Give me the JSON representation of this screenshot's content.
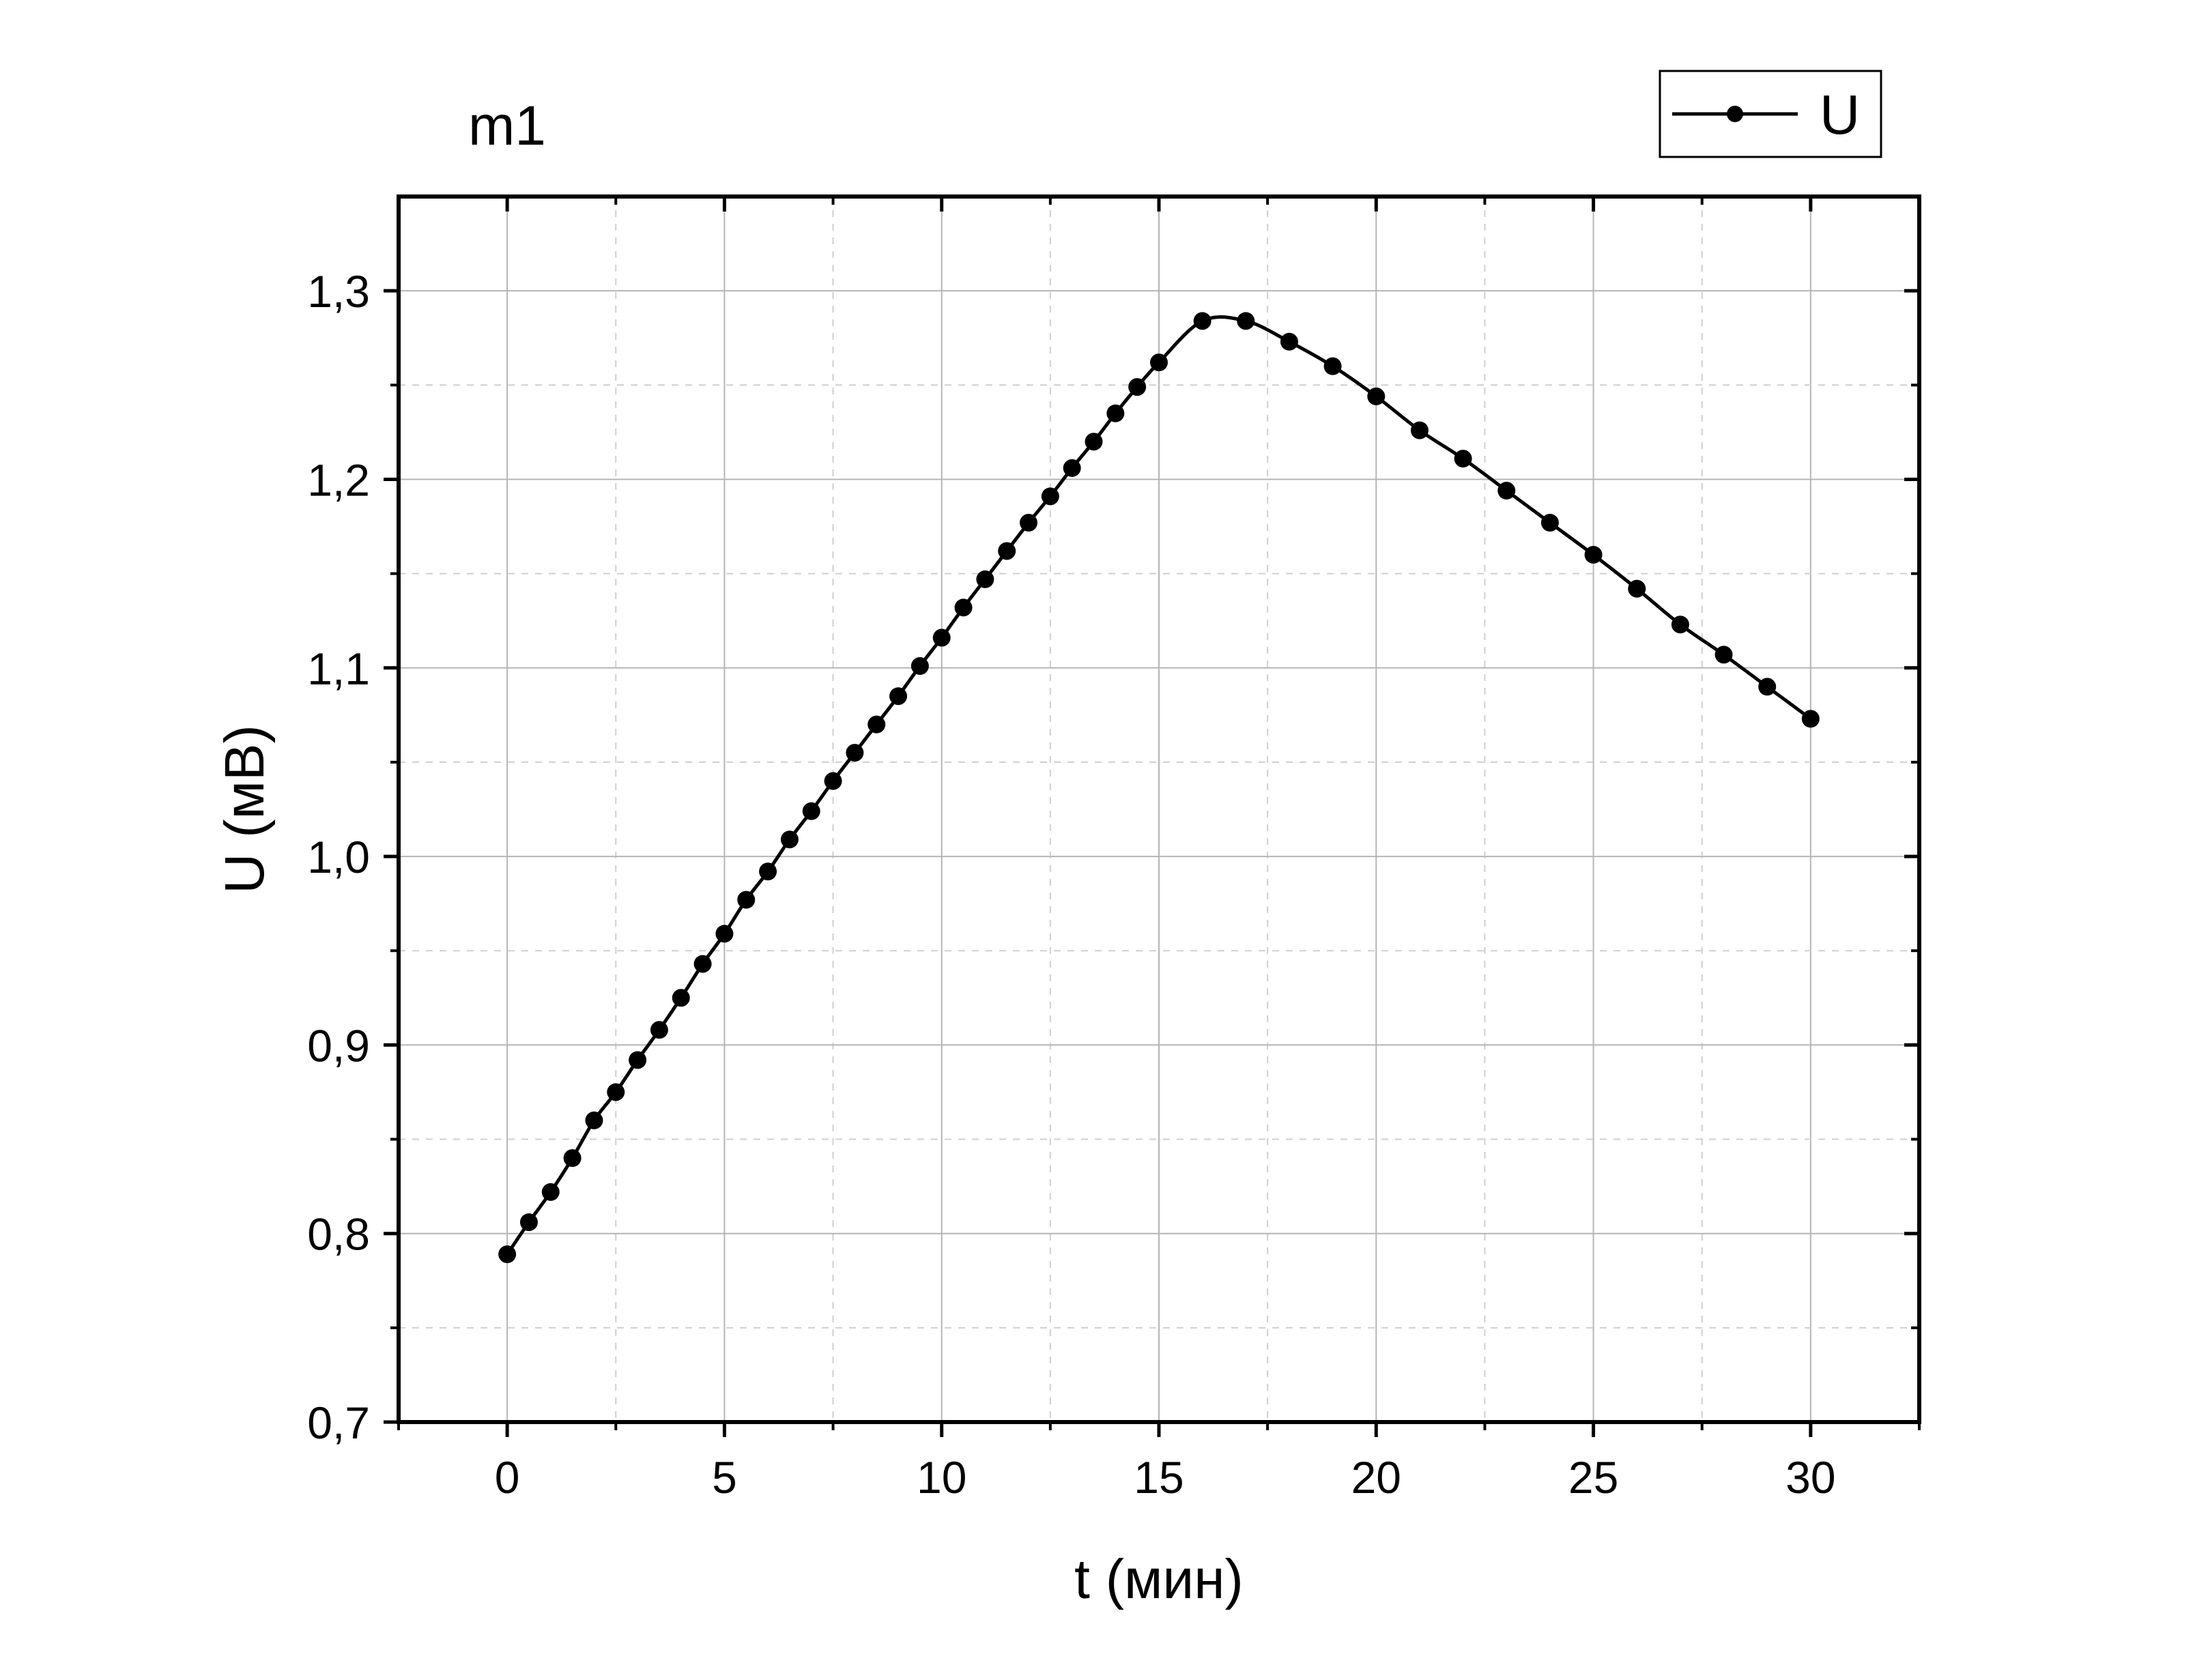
{
  "panel_label": "m1",
  "chart_data": {
    "type": "line",
    "xlabel": "t (мин)",
    "ylabel": "U (мВ)",
    "xlim": [
      -2.5,
      32.5
    ],
    "ylim": [
      0.7,
      1.35
    ],
    "x_ticks": [
      0,
      5,
      10,
      15,
      20,
      25,
      30
    ],
    "x_tick_labels": [
      "0",
      "5",
      "10",
      "15",
      "20",
      "25",
      "30"
    ],
    "y_ticks": [
      0.7,
      0.8,
      0.9,
      1.0,
      1.1,
      1.2,
      1.3
    ],
    "y_tick_labels": [
      "0,7",
      "0,8",
      "0,9",
      "1,0",
      "1,1",
      "1,2",
      "1,3"
    ],
    "grid": true,
    "legend": {
      "position": "top-right",
      "entries": [
        "U"
      ]
    },
    "series": [
      {
        "name": "U",
        "color": "#000000",
        "marker": "circle",
        "smooth": true,
        "x": [
          0,
          0.5,
          1,
          1.5,
          2,
          2.5,
          3,
          3.5,
          4,
          4.5,
          5,
          5.5,
          6,
          6.5,
          7,
          7.5,
          8,
          8.5,
          9,
          9.5,
          10,
          10.5,
          11,
          11.5,
          12,
          12.5,
          13,
          13.5,
          14,
          14.5,
          15,
          16,
          17,
          18,
          19,
          20,
          21,
          22,
          23,
          24,
          25,
          26,
          27,
          28,
          29,
          30
        ],
        "y": [
          0.789,
          0.806,
          0.822,
          0.84,
          0.86,
          0.875,
          0.892,
          0.908,
          0.925,
          0.943,
          0.959,
          0.977,
          0.992,
          1.009,
          1.024,
          1.04,
          1.055,
          1.07,
          1.085,
          1.101,
          1.116,
          1.132,
          1.147,
          1.162,
          1.177,
          1.191,
          1.206,
          1.22,
          1.235,
          1.249,
          1.262,
          1.284,
          1.284,
          1.273,
          1.26,
          1.244,
          1.226,
          1.211,
          1.194,
          1.177,
          1.16,
          1.142,
          1.123,
          1.107,
          1.09,
          1.073
        ]
      }
    ]
  }
}
